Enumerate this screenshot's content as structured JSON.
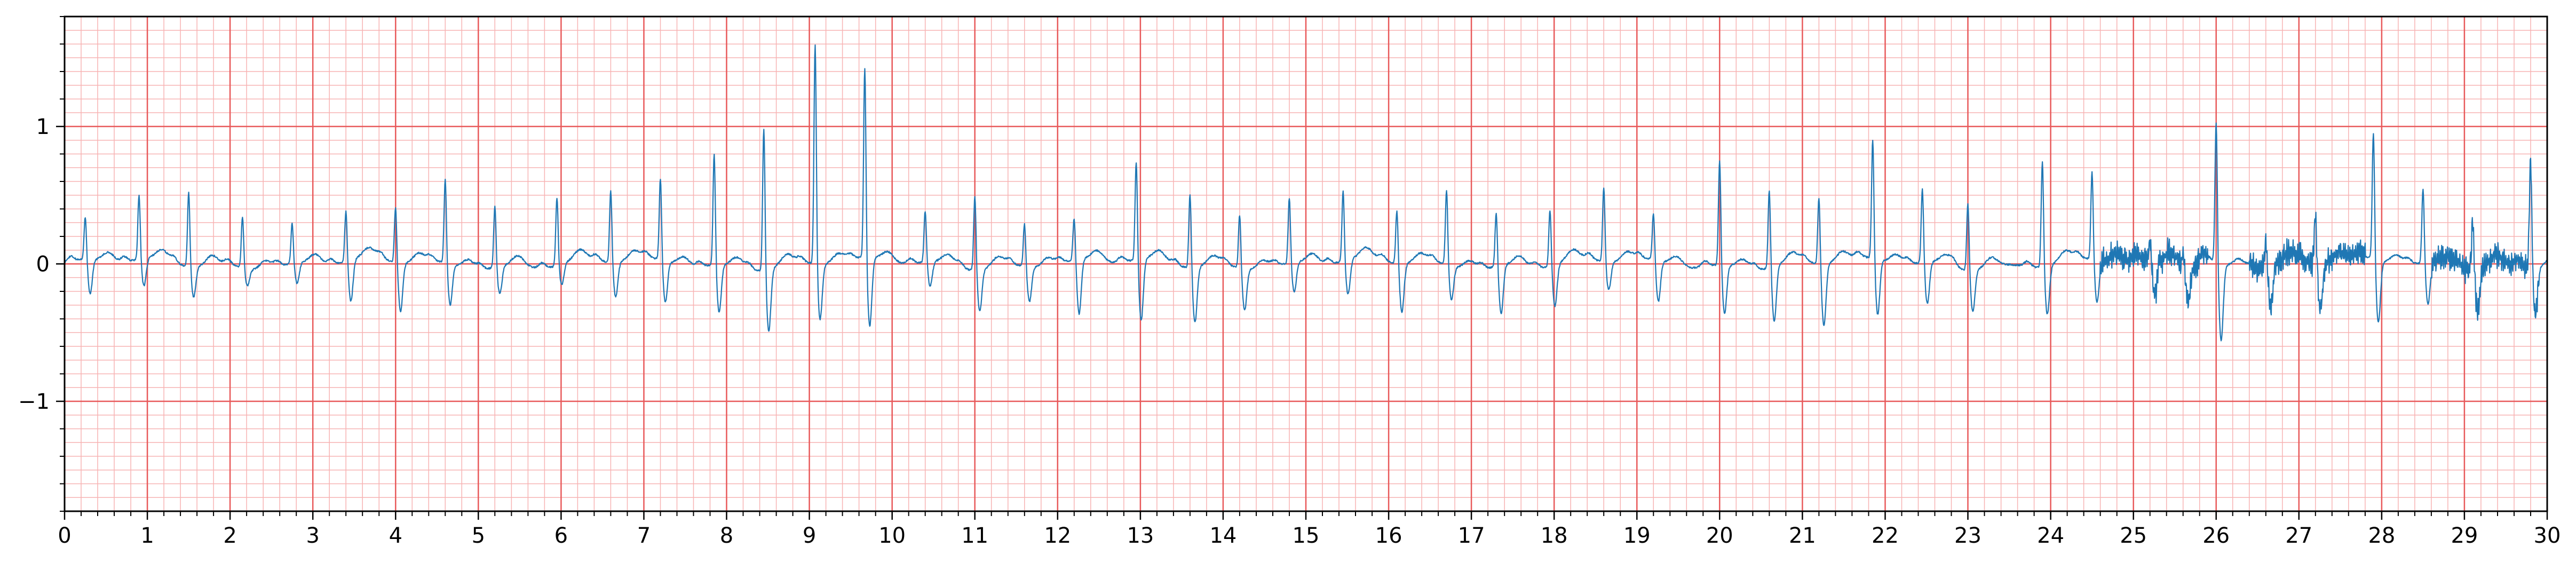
{
  "chart_data": {
    "type": "line",
    "title": "",
    "xlabel": "",
    "ylabel": "",
    "xlim": [
      0,
      30
    ],
    "ylim": [
      -1.8,
      1.8
    ],
    "x_ticks": [
      0,
      1,
      2,
      3,
      4,
      5,
      6,
      7,
      8,
      9,
      10,
      11,
      12,
      13,
      14,
      15,
      16,
      17,
      18,
      19,
      20,
      21,
      22,
      23,
      24,
      25,
      26,
      27,
      28,
      29,
      30
    ],
    "x_tick_labels": [
      "0",
      "1",
      "2",
      "3",
      "4",
      "5",
      "6",
      "7",
      "8",
      "9",
      "10",
      "11",
      "12",
      "13",
      "14",
      "15",
      "16",
      "17",
      "18",
      "19",
      "20",
      "21",
      "22",
      "23",
      "24",
      "25",
      "26",
      "27",
      "28",
      "29",
      "30"
    ],
    "y_ticks": [
      -1,
      0,
      1
    ],
    "y_tick_labels": [
      "−1",
      "0",
      "1"
    ],
    "grid": {
      "major": true,
      "minor": true,
      "major_x_step": 1,
      "major_y_step": 1,
      "minor_x_step": 0.2,
      "minor_y_step": 0.1
    },
    "colors": {
      "line": "#1f77b4",
      "major_grid": "#e8595a",
      "minor_grid": "#f7b3b3",
      "axis": "#000000"
    },
    "beats": {
      "x": [
        0.25,
        0.9,
        1.5,
        2.15,
        2.75,
        3.4,
        4.0,
        4.6,
        5.2,
        5.95,
        6.6,
        7.2,
        7.85,
        8.45,
        9.07,
        9.67,
        10.4,
        11.0,
        11.6,
        12.2,
        12.95,
        13.6,
        14.2,
        14.8,
        15.45,
        16.1,
        16.7,
        17.3,
        17.95,
        18.6,
        19.2,
        20.0,
        20.6,
        21.2,
        21.85,
        22.45,
        23.0,
        23.9,
        24.5,
        25.2,
        25.6,
        26.0,
        26.6,
        27.2,
        27.9,
        28.5,
        29.1,
        29.8
      ],
      "amplitude": [
        0.32,
        0.48,
        0.55,
        0.38,
        0.3,
        0.38,
        0.42,
        0.62,
        0.45,
        0.5,
        0.53,
        0.6,
        0.82,
        1.05,
        1.62,
        1.4,
        0.38,
        0.55,
        0.32,
        0.32,
        0.73,
        0.55,
        0.4,
        0.48,
        0.52,
        0.4,
        0.55,
        0.4,
        0.42,
        0.55,
        0.35,
        0.78,
        0.58,
        0.5,
        0.88,
        0.55,
        0.5,
        0.78,
        0.65,
        0.15,
        0.1,
        1.05,
        0.2,
        0.35,
        0.94,
        0.55,
        0.35,
        0.8
      ],
      "trough": [
        -0.25,
        -0.2,
        -0.22,
        -0.12,
        -0.15,
        -0.3,
        -0.35,
        -0.3,
        -0.2,
        -0.15,
        -0.25,
        -0.3,
        -0.35,
        -0.45,
        -0.4,
        -0.5,
        -0.18,
        -0.3,
        -0.25,
        -0.4,
        -0.45,
        -0.4,
        -0.3,
        -0.22,
        -0.25,
        -0.35,
        -0.25,
        -0.35,
        -0.3,
        -0.2,
        -0.3,
        -0.35,
        -0.4,
        -0.45,
        -0.4,
        -0.3,
        -0.3,
        -0.35,
        -0.3,
        -0.25,
        -0.25,
        -0.55,
        -0.3,
        -0.35,
        -0.45,
        -0.3,
        -0.3,
        -0.35
      ]
    },
    "noisy_segments": [
      [
        24.6,
        25.9
      ],
      [
        26.4,
        27.8
      ],
      [
        28.6,
        29.9
      ]
    ]
  }
}
